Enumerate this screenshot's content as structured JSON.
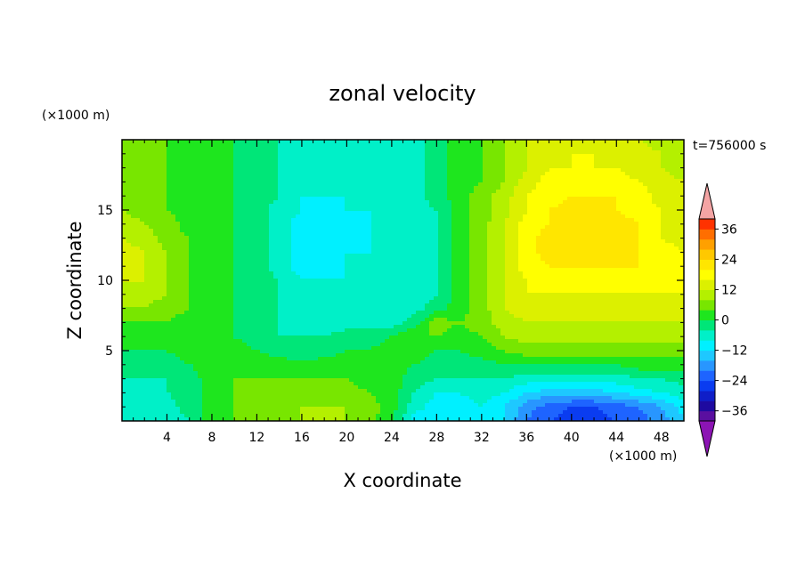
{
  "chart_data": {
    "type": "heatmap",
    "title": "zonal velocity",
    "time_label": "t=756000 s",
    "xlabel": "X coordinate",
    "ylabel": "Z coordinate",
    "x_unit": "(×1000 m)",
    "y_unit": "(×1000 m)",
    "xlim": [
      0,
      50
    ],
    "ylim": [
      0,
      20
    ],
    "x_ticks": [
      "4",
      "8",
      "12",
      "16",
      "20",
      "24",
      "28",
      "32",
      "36",
      "40",
      "44",
      "48"
    ],
    "x_tick_values": [
      4,
      8,
      12,
      16,
      20,
      24,
      28,
      32,
      36,
      40,
      44,
      48
    ],
    "y_ticks": [
      "5",
      "10",
      "15"
    ],
    "y_tick_values": [
      5,
      10,
      15
    ],
    "colorbar": {
      "ticks": [
        "36",
        "24",
        "12",
        "0",
        "−12",
        "−24",
        "−36"
      ],
      "tick_values": [
        36,
        24,
        12,
        0,
        -12,
        -24,
        -36
      ],
      "levels": [
        -40,
        -36,
        -32,
        -28,
        -24,
        -20,
        -16,
        -12,
        -8,
        -4,
        0,
        4,
        8,
        12,
        16,
        20,
        24,
        28,
        32,
        36,
        40
      ],
      "colors": [
        "#5a0fa0",
        "#1e0aa0",
        "#0f1ec8",
        "#0a3cf0",
        "#1e64ff",
        "#2896ff",
        "#1ec8ff",
        "#00f0ff",
        "#00f0c8",
        "#00e678",
        "#1ee61e",
        "#78e600",
        "#b4f000",
        "#dcf000",
        "#ffff00",
        "#ffe600",
        "#ffc800",
        "#ffa000",
        "#ff6e00",
        "#ff3200"
      ],
      "under_color": "#8c14b4",
      "over_color": "#f4a4a4"
    },
    "field_description": "zonal velocity u(x,z) sampled approx; units as colorbar",
    "z_rows": [
      0,
      1,
      2,
      3,
      4,
      5,
      6,
      7,
      8,
      9,
      10,
      11,
      12,
      13,
      14,
      15,
      16,
      17,
      18,
      19,
      20
    ],
    "x_cols": [
      0,
      2,
      4,
      6,
      8,
      10,
      12,
      14,
      16,
      18,
      20,
      22,
      24,
      26,
      28,
      30,
      32,
      34,
      36,
      38,
      40,
      42,
      44,
      46,
      48,
      50
    ],
    "values": [
      [
        -8,
        -8,
        -6,
        -4,
        2,
        4,
        4,
        6,
        8,
        8,
        8,
        6,
        0,
        -10,
        -12,
        -10,
        -8,
        -12,
        -20,
        -24,
        -26,
        -26,
        -24,
        -22,
        -18,
        -12
      ],
      [
        -8,
        -8,
        -6,
        -2,
        2,
        4,
        6,
        6,
        8,
        8,
        8,
        6,
        2,
        -6,
        -10,
        -10,
        -8,
        -12,
        -18,
        -22,
        -24,
        -24,
        -22,
        -20,
        -16,
        -10
      ],
      [
        -6,
        -6,
        -4,
        -2,
        2,
        4,
        6,
        6,
        6,
        8,
        6,
        4,
        2,
        -4,
        -8,
        -8,
        -6,
        -8,
        -12,
        -14,
        -14,
        -14,
        -12,
        -10,
        -8,
        -6
      ],
      [
        -4,
        -4,
        -4,
        -2,
        2,
        4,
        4,
        4,
        4,
        4,
        4,
        2,
        2,
        -2,
        -4,
        -4,
        -4,
        -4,
        -6,
        -6,
        -6,
        -6,
        -6,
        -4,
        -4,
        -2
      ],
      [
        -2,
        -2,
        -2,
        0,
        2,
        2,
        2,
        2,
        2,
        2,
        2,
        2,
        2,
        0,
        -2,
        -2,
        -2,
        0,
        0,
        0,
        0,
        0,
        0,
        2,
        2,
        2
      ],
      [
        0,
        0,
        0,
        2,
        2,
        2,
        0,
        -2,
        -4,
        -2,
        0,
        0,
        2,
        2,
        0,
        0,
        2,
        4,
        6,
        6,
        6,
        6,
        6,
        6,
        6,
        6
      ],
      [
        2,
        2,
        2,
        2,
        2,
        0,
        -2,
        -4,
        -4,
        -4,
        -2,
        -2,
        0,
        4,
        4,
        2,
        4,
        8,
        10,
        10,
        10,
        10,
        10,
        10,
        10,
        10
      ],
      [
        4,
        4,
        4,
        2,
        2,
        0,
        -2,
        -4,
        -6,
        -6,
        -6,
        -6,
        -6,
        -2,
        6,
        4,
        6,
        10,
        12,
        12,
        12,
        12,
        12,
        12,
        12,
        12
      ],
      [
        8,
        8,
        6,
        4,
        2,
        0,
        -2,
        -4,
        -6,
        -6,
        -6,
        -6,
        -6,
        -6,
        -2,
        2,
        6,
        12,
        14,
        14,
        14,
        14,
        14,
        14,
        14,
        14
      ],
      [
        10,
        10,
        8,
        4,
        2,
        0,
        -2,
        -4,
        -6,
        -8,
        -8,
        -8,
        -6,
        -6,
        -4,
        2,
        6,
        12,
        16,
        16,
        16,
        16,
        16,
        16,
        16,
        16
      ],
      [
        12,
        12,
        8,
        4,
        2,
        0,
        -2,
        -4,
        -8,
        -8,
        -8,
        -8,
        -6,
        -6,
        -4,
        2,
        6,
        12,
        16,
        18,
        18,
        18,
        18,
        18,
        16,
        16
      ],
      [
        14,
        12,
        8,
        4,
        2,
        0,
        -2,
        -6,
        -10,
        -10,
        -8,
        -8,
        -6,
        -6,
        -4,
        2,
        6,
        12,
        18,
        20,
        20,
        20,
        20,
        20,
        18,
        16
      ],
      [
        14,
        12,
        8,
        4,
        2,
        0,
        -2,
        -6,
        -10,
        -10,
        -8,
        -8,
        -6,
        -6,
        -4,
        2,
        6,
        12,
        18,
        22,
        22,
        22,
        22,
        20,
        18,
        16
      ],
      [
        12,
        10,
        6,
        4,
        2,
        0,
        -2,
        -6,
        -10,
        -12,
        -10,
        -8,
        -6,
        -6,
        -4,
        2,
        6,
        12,
        18,
        22,
        22,
        22,
        22,
        20,
        16,
        14
      ],
      [
        10,
        8,
        6,
        2,
        2,
        0,
        -2,
        -6,
        -10,
        -10,
        -10,
        -8,
        -6,
        -6,
        -4,
        2,
        6,
        12,
        18,
        20,
        22,
        22,
        22,
        20,
        16,
        14
      ],
      [
        8,
        6,
        4,
        2,
        2,
        0,
        -2,
        -6,
        -8,
        -10,
        -8,
        -8,
        -6,
        -6,
        -4,
        2,
        6,
        10,
        16,
        20,
        22,
        22,
        20,
        18,
        16,
        14
      ],
      [
        8,
        6,
        4,
        2,
        2,
        0,
        -2,
        -4,
        -8,
        -8,
        -8,
        -8,
        -6,
        -6,
        -2,
        2,
        6,
        10,
        16,
        18,
        20,
        20,
        20,
        18,
        14,
        12
      ],
      [
        8,
        6,
        4,
        2,
        2,
        0,
        -2,
        -4,
        -6,
        -8,
        -8,
        -8,
        -8,
        -6,
        -2,
        2,
        4,
        8,
        14,
        18,
        18,
        18,
        18,
        16,
        14,
        12
      ],
      [
        6,
        6,
        4,
        2,
        2,
        0,
        -2,
        -4,
        -6,
        -8,
        -8,
        -8,
        -8,
        -6,
        -2,
        2,
        4,
        8,
        12,
        16,
        16,
        16,
        16,
        14,
        12,
        10
      ],
      [
        6,
        6,
        4,
        2,
        2,
        0,
        -2,
        -4,
        -6,
        -6,
        -8,
        -8,
        -8,
        -6,
        -2,
        2,
        4,
        8,
        12,
        14,
        16,
        16,
        14,
        14,
        12,
        10
      ],
      [
        6,
        6,
        4,
        2,
        2,
        0,
        -2,
        -4,
        -6,
        -6,
        -6,
        -8,
        -8,
        -6,
        -2,
        2,
        4,
        8,
        12,
        14,
        14,
        14,
        14,
        12,
        10,
        10
      ]
    ]
  }
}
